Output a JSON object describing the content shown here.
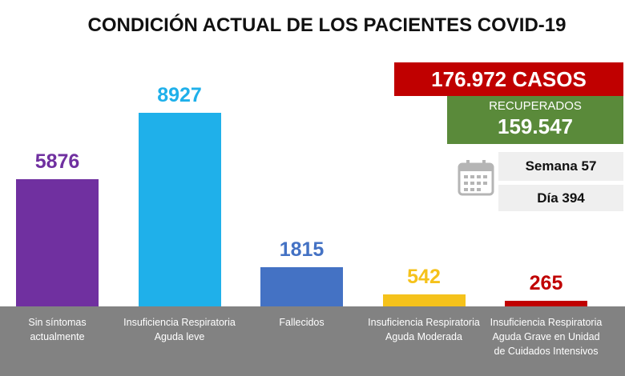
{
  "chart_data": {
    "type": "bar",
    "title": "CONDICIÓN ACTUAL DE LOS PACIENTES COVID-19",
    "categories": [
      "Sin síntomas actualmente",
      "Insuficiencia Respiratoria Aguda leve",
      "Fallecidos",
      "Insuficiencia Respiratoria Aguda Moderada",
      "Insuficiencia Respiratoria Aguda Grave en Unidad de Cuidados Intensivos"
    ],
    "values": [
      5876,
      8927,
      1815,
      542,
      265
    ],
    "colors": [
      "#7030a0",
      "#1fb0ea",
      "#4472c4",
      "#f5c21b",
      "#c00000"
    ],
    "info": {
      "cases": "176.972 CASOS",
      "recovered_label": "RECUPERADOS",
      "recovered": "159.547",
      "week": "Semana 57",
      "day": "Día 394"
    }
  }
}
